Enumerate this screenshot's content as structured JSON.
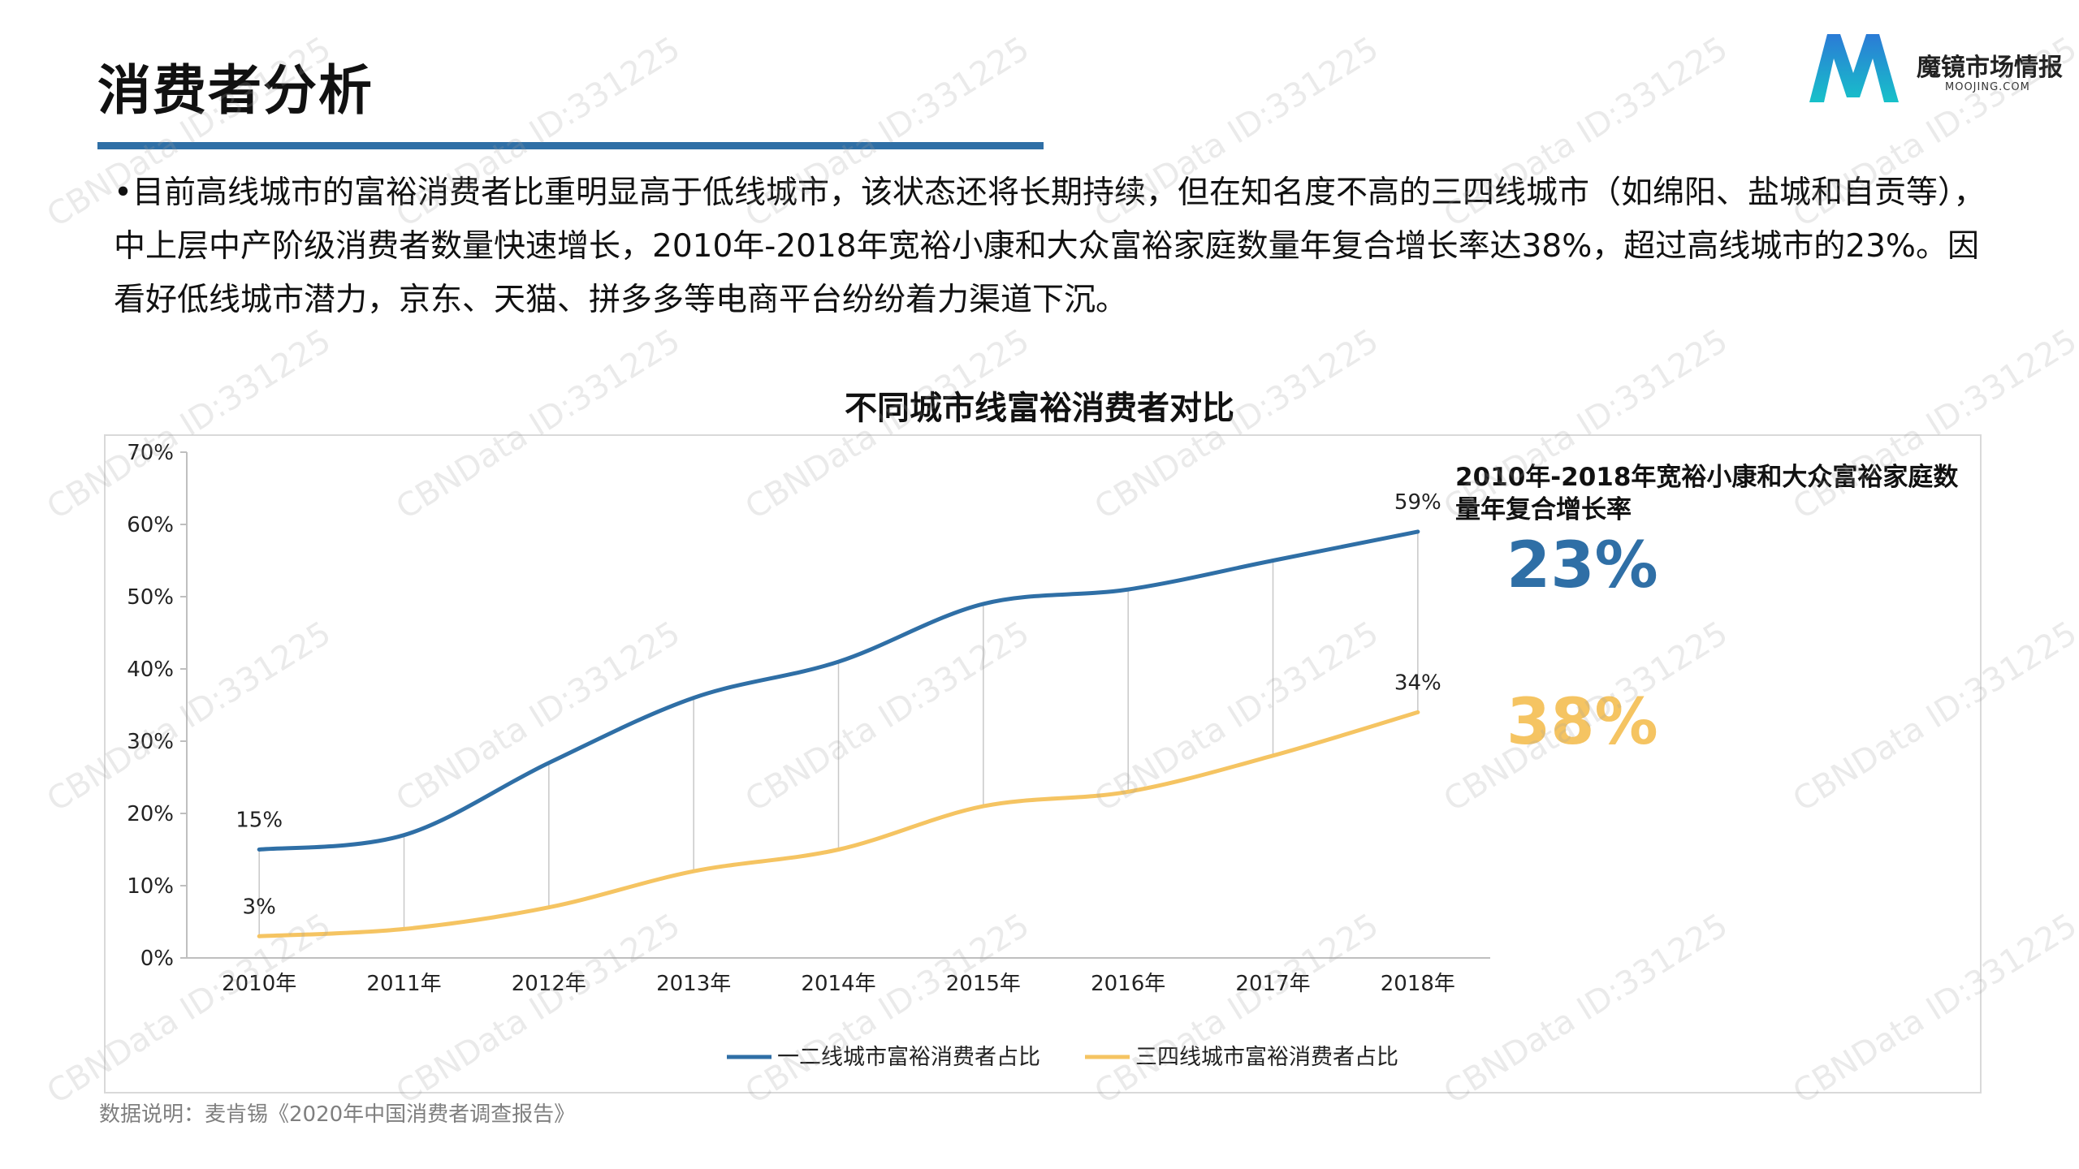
{
  "header": {
    "title": "消费者分析",
    "logo_name": "魔镜市场情报",
    "logo_domain": "MOOJING.COM"
  },
  "intro_text": "•目前高线城市的富裕消费者比重明显高于低线城市，该状态还将长期持续，但在知名度不高的三四线城市（如绵阳、盐城和自贡等），中上层中产阶级消费者数量快速增长，2010年-2018年宽裕小康和大众富裕家庭数量年复合增长率达38%，超过高线城市的23%。因看好低线城市潜力，京东、天猫、拼多多等电商平台纷纷着力渠道下沉。",
  "side_panel": {
    "heading": "2010年-2018年宽裕小康和大众富裕家庭数量年复合增长率",
    "value_a": "23%",
    "value_b": "38%"
  },
  "source_note": "数据说明：麦肯锡《2020年中国消费者调查报告》",
  "watermark_text": "CBNData ID:331225",
  "chart_data": {
    "type": "line",
    "title": "不同城市线富裕消费者对比",
    "categories": [
      "2010年",
      "2011年",
      "2012年",
      "2013年",
      "2014年",
      "2015年",
      "2016年",
      "2017年",
      "2018年"
    ],
    "series": [
      {
        "name": "一二线城市富裕消费者占比",
        "color": "#2f6fa6",
        "values": [
          15,
          17,
          27,
          36,
          41,
          49,
          51,
          55,
          59
        ]
      },
      {
        "name": "三四线城市富裕消费者占比",
        "color": "#f5c462",
        "values": [
          3,
          4,
          7,
          12,
          15,
          21,
          23,
          28,
          34
        ]
      }
    ],
    "data_labels": [
      {
        "series": 0,
        "index": 0,
        "text": "15%"
      },
      {
        "series": 0,
        "index": 8,
        "text": "59%"
      },
      {
        "series": 1,
        "index": 0,
        "text": "3%"
      },
      {
        "series": 1,
        "index": 8,
        "text": "34%"
      }
    ],
    "y_ticks": [
      "0%",
      "10%",
      "20%",
      "30%",
      "40%",
      "50%",
      "60%",
      "70%"
    ],
    "ylim": [
      0,
      70
    ],
    "legend_position": "bottom",
    "drop_lines": true
  }
}
